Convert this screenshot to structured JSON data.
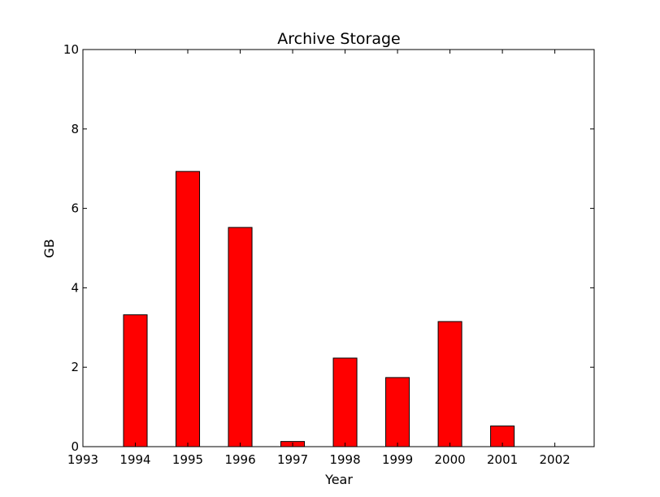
{
  "chart_data": {
    "type": "bar",
    "title": "Archive Storage",
    "xlabel": "Year",
    "ylabel": "GB",
    "x": [
      1994,
      1995,
      1996,
      1997,
      1998,
      1999,
      2000,
      2001,
      2002
    ],
    "values": [
      3.32,
      6.93,
      5.52,
      0.13,
      2.23,
      1.74,
      3.15,
      0.52,
      0
    ],
    "xlim": [
      1993,
      2002.75
    ],
    "ylim": [
      0,
      10
    ],
    "xticks": [
      "1993",
      "1994",
      "1995",
      "1996",
      "1997",
      "1998",
      "1999",
      "2000",
      "2001",
      "2002"
    ],
    "yticks": [
      "0",
      "2",
      "4",
      "6",
      "8",
      "10"
    ],
    "grid": false,
    "bar_color": "#ff0000",
    "edge_color": "#000000"
  }
}
